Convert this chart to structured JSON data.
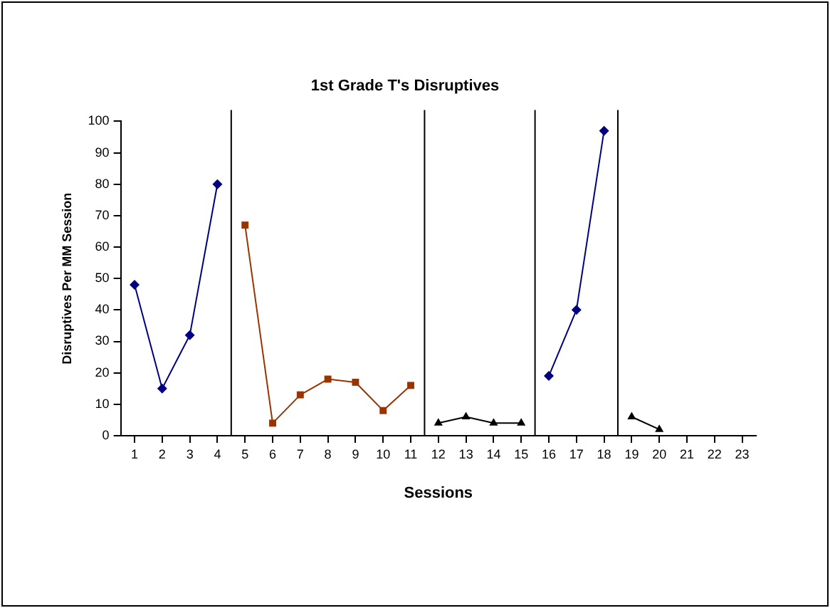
{
  "chart_data": {
    "type": "line",
    "title": "1st Grade T's Disruptives",
    "xlabel": "Sessions",
    "ylabel": "Disruptives Per MM Session",
    "xlim": [
      0.5,
      23.5
    ],
    "xticks": [
      1,
      2,
      3,
      4,
      5,
      6,
      7,
      8,
      9,
      10,
      11,
      12,
      13,
      14,
      15,
      16,
      17,
      18,
      19,
      20,
      21,
      22,
      23
    ],
    "ylim": [
      0,
      100
    ],
    "yticks": [
      0,
      10,
      20,
      30,
      40,
      50,
      60,
      70,
      80,
      90,
      100
    ],
    "grid": false,
    "legend": false,
    "series": [
      {
        "color": "#000080",
        "marker": "diamond",
        "x": [
          1,
          2,
          3,
          4
        ],
        "values": [
          48,
          15,
          32,
          80
        ]
      },
      {
        "color": "#993300",
        "marker": "square",
        "x": [
          5,
          6,
          7,
          8,
          9,
          10,
          11
        ],
        "values": [
          67,
          4,
          13,
          18,
          17,
          8,
          16
        ]
      },
      {
        "color": "#000000",
        "marker": "triangle",
        "x": [
          12,
          13,
          14,
          15
        ],
        "values": [
          4,
          6,
          4,
          4
        ]
      },
      {
        "color": "#000080",
        "marker": "diamond",
        "x": [
          16,
          17,
          18
        ],
        "values": [
          19,
          40,
          97
        ]
      },
      {
        "color": "#000000",
        "marker": "triangle",
        "x": [
          19,
          20
        ],
        "values": [
          6,
          2
        ]
      }
    ],
    "ref_lines": [
      {
        "axis": "x",
        "value": 4.5,
        "color": "#000000"
      },
      {
        "axis": "x",
        "value": 11.5,
        "color": "#000000"
      },
      {
        "axis": "x",
        "value": 15.5,
        "color": "#000000"
      },
      {
        "axis": "x",
        "value": 18.5,
        "color": "#000000"
      }
    ]
  }
}
